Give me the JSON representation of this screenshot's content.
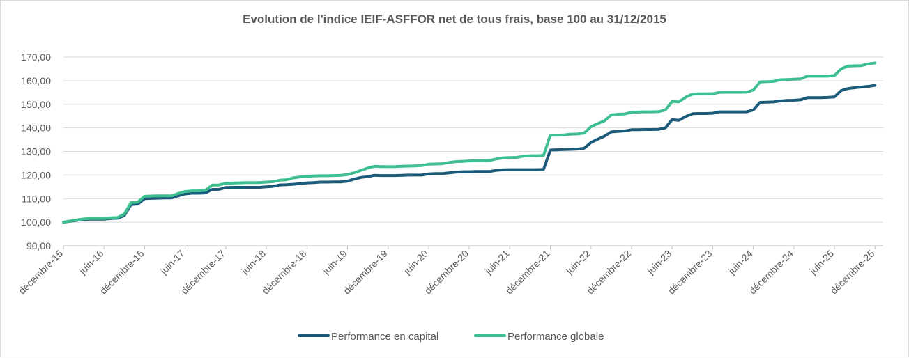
{
  "chart_data": {
    "type": "line",
    "title": "Evolution de l'indice IEIF-ASFFOR net de tous frais, base 100 au 31/12/2015",
    "xlabel": "",
    "ylabel": "",
    "ylim": [
      90,
      170
    ],
    "yticks": [
      "90,00",
      "100,00",
      "110,00",
      "120,00",
      "130,00",
      "140,00",
      "150,00",
      "160,00",
      "170,00"
    ],
    "xtick_labels": [
      "décembre-15",
      "juin-16",
      "décembre-16",
      "juin-17",
      "décembre-17",
      "juin-18",
      "décembre-18",
      "juin-19",
      "décembre-19",
      "juin-20",
      "décembre-20",
      "juin-21",
      "décembre-21",
      "juin-22",
      "décembre-22",
      "juin-23",
      "décembre-23",
      "juin-24",
      "décembre-24",
      "juin-25",
      "décembre-25"
    ],
    "x_start": "décembre-15",
    "x_end": "décembre-25",
    "grid": "horizontal",
    "legend_position": "bottom",
    "series": [
      {
        "name": "Performance en capital",
        "color": "#1b5a7a",
        "values": [
          100.0,
          100.4,
          100.8,
          101.2,
          101.3,
          101.3,
          101.3,
          101.6,
          101.7,
          102.8,
          107.5,
          107.7,
          110.0,
          110.1,
          110.2,
          110.3,
          110.3,
          111.2,
          112.0,
          112.3,
          112.3,
          112.4,
          113.9,
          113.9,
          114.7,
          114.8,
          114.8,
          114.8,
          114.8,
          114.8,
          115.0,
          115.2,
          115.8,
          115.9,
          116.1,
          116.4,
          116.7,
          116.8,
          117.0,
          117.0,
          117.1,
          117.1,
          117.4,
          118.3,
          119.0,
          119.3,
          119.9,
          119.8,
          119.8,
          119.8,
          119.9,
          120.0,
          120.0,
          120.0,
          120.5,
          120.6,
          120.6,
          120.9,
          121.2,
          121.4,
          121.4,
          121.5,
          121.5,
          121.5,
          122.0,
          122.2,
          122.3,
          122.3,
          122.3,
          122.3,
          122.3,
          122.4,
          130.6,
          130.7,
          130.8,
          130.9,
          131.0,
          131.4,
          133.8,
          135.2,
          136.5,
          138.3,
          138.5,
          138.7,
          139.2,
          139.2,
          139.3,
          139.3,
          139.4,
          140.0,
          143.5,
          143.2,
          144.8,
          146.0,
          146.1,
          146.1,
          146.2,
          146.8,
          146.8,
          146.8,
          146.8,
          146.8,
          147.6,
          150.8,
          150.9,
          151.0,
          151.4,
          151.6,
          151.7,
          151.9,
          152.8,
          152.8,
          152.8,
          152.9,
          153.1,
          155.8,
          156.7,
          157.0,
          157.3,
          157.6,
          158.0
        ]
      },
      {
        "name": "Performance globale",
        "color": "#3ebf8f",
        "values": [
          100.0,
          100.5,
          101.0,
          101.4,
          101.6,
          101.6,
          101.6,
          101.9,
          102.0,
          103.5,
          108.3,
          108.5,
          111.0,
          111.1,
          111.2,
          111.2,
          111.2,
          112.2,
          113.0,
          113.3,
          113.3,
          113.5,
          115.7,
          115.8,
          116.5,
          116.6,
          116.7,
          116.8,
          116.8,
          116.8,
          117.0,
          117.2,
          117.8,
          118.0,
          118.8,
          119.2,
          119.5,
          119.6,
          119.7,
          119.7,
          119.8,
          119.9,
          120.2,
          121.0,
          122.0,
          123.0,
          123.7,
          123.6,
          123.6,
          123.6,
          123.7,
          123.8,
          123.9,
          124.0,
          124.6,
          124.7,
          124.8,
          125.3,
          125.7,
          125.8,
          126.0,
          126.1,
          126.1,
          126.2,
          126.8,
          127.3,
          127.4,
          127.5,
          128.0,
          128.2,
          128.2,
          128.3,
          136.9,
          136.9,
          137.0,
          137.3,
          137.4,
          137.8,
          140.5,
          141.8,
          143.0,
          145.5,
          145.8,
          145.9,
          146.6,
          146.7,
          146.8,
          146.8,
          146.9,
          147.6,
          151.2,
          151.0,
          153.0,
          154.3,
          154.4,
          154.4,
          154.5,
          155.0,
          155.1,
          155.1,
          155.1,
          155.1,
          156.0,
          159.5,
          159.6,
          159.7,
          160.4,
          160.5,
          160.6,
          160.8,
          161.9,
          161.9,
          161.9,
          161.9,
          162.2,
          165.0,
          166.2,
          166.3,
          166.4,
          167.1,
          167.5
        ]
      }
    ]
  }
}
